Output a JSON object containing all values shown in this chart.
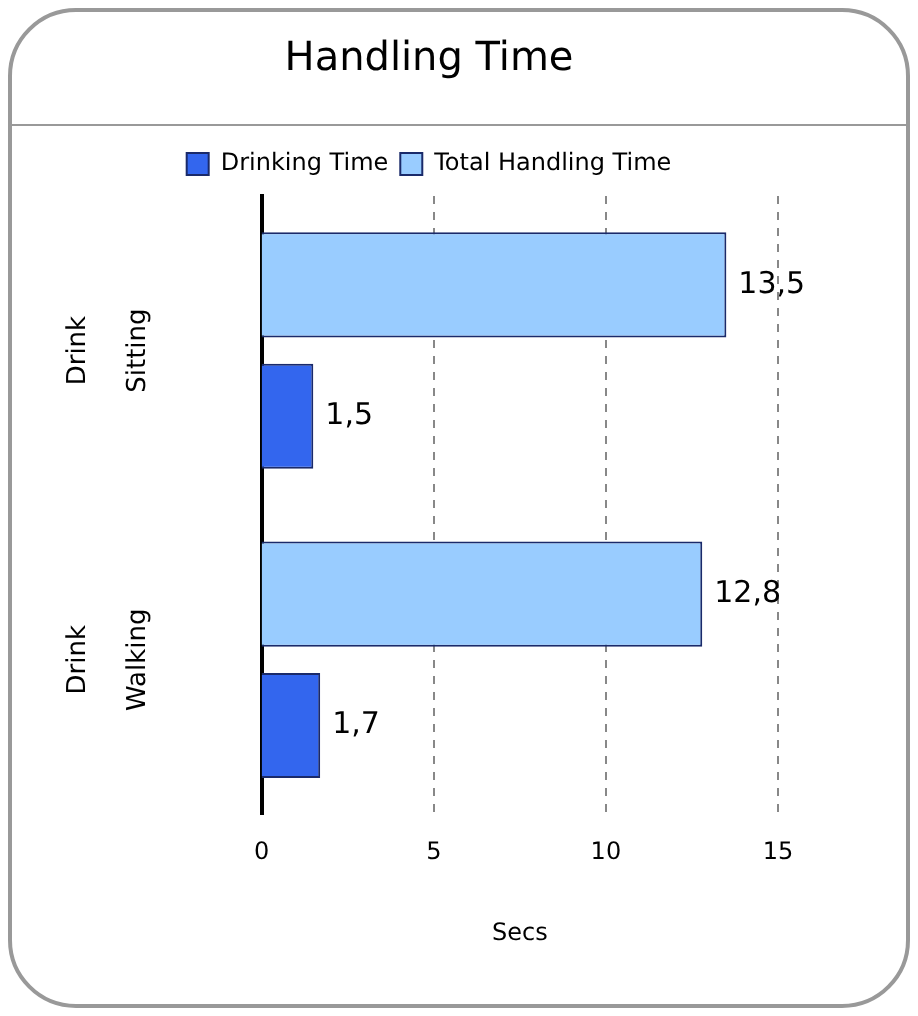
{
  "chart_data": {
    "type": "bar",
    "orientation": "horizontal",
    "title": "Handling Time",
    "xlabel": "Secs",
    "categories": [
      "Drink Sitting",
      "Drink Walking"
    ],
    "series": [
      {
        "name": "Total Handling Time",
        "color": "#99ccff",
        "values": [
          13.5,
          12.8
        ],
        "value_labels": [
          "13,5",
          "12,8"
        ]
      },
      {
        "name": "Drinking Time",
        "color": "#3366ee",
        "values": [
          1.5,
          1.7
        ],
        "value_labels": [
          "1,5",
          "1,7"
        ]
      }
    ],
    "xlim": [
      0,
      15
    ],
    "xticks": [
      0,
      5,
      10,
      15
    ],
    "grid": "x",
    "legend": "top"
  }
}
